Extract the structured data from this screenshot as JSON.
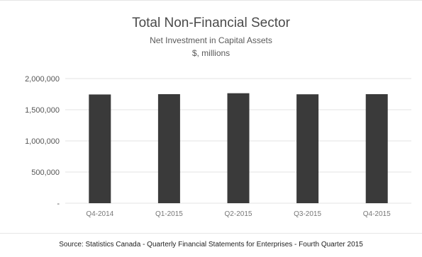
{
  "chart_data": {
    "type": "bar",
    "title": "Total Non-Financial Sector",
    "subtitle": "Net Investment in Capital Assets",
    "unit_label": "$, millions",
    "xlabel": "",
    "ylabel": "",
    "categories": [
      "Q4-2014",
      "Q1-2015",
      "Q2-2015",
      "Q3-2015",
      "Q4-2015"
    ],
    "values": [
      1745000,
      1750000,
      1765000,
      1748000,
      1750000
    ],
    "ylim": [
      0,
      2000000
    ],
    "yticks": [
      0,
      500000,
      1000000,
      1500000,
      2000000
    ],
    "ytick_labels": [
      "-",
      "500,000",
      "1,000,000",
      "1,500,000",
      "2,000,000"
    ],
    "bar_color": "#3a3a3a",
    "grid": "horizontal",
    "legend": "none"
  },
  "source": "Source: Statistics Canada - Quarterly Financial Statements for Enterprises - Fourth Quarter 2015"
}
